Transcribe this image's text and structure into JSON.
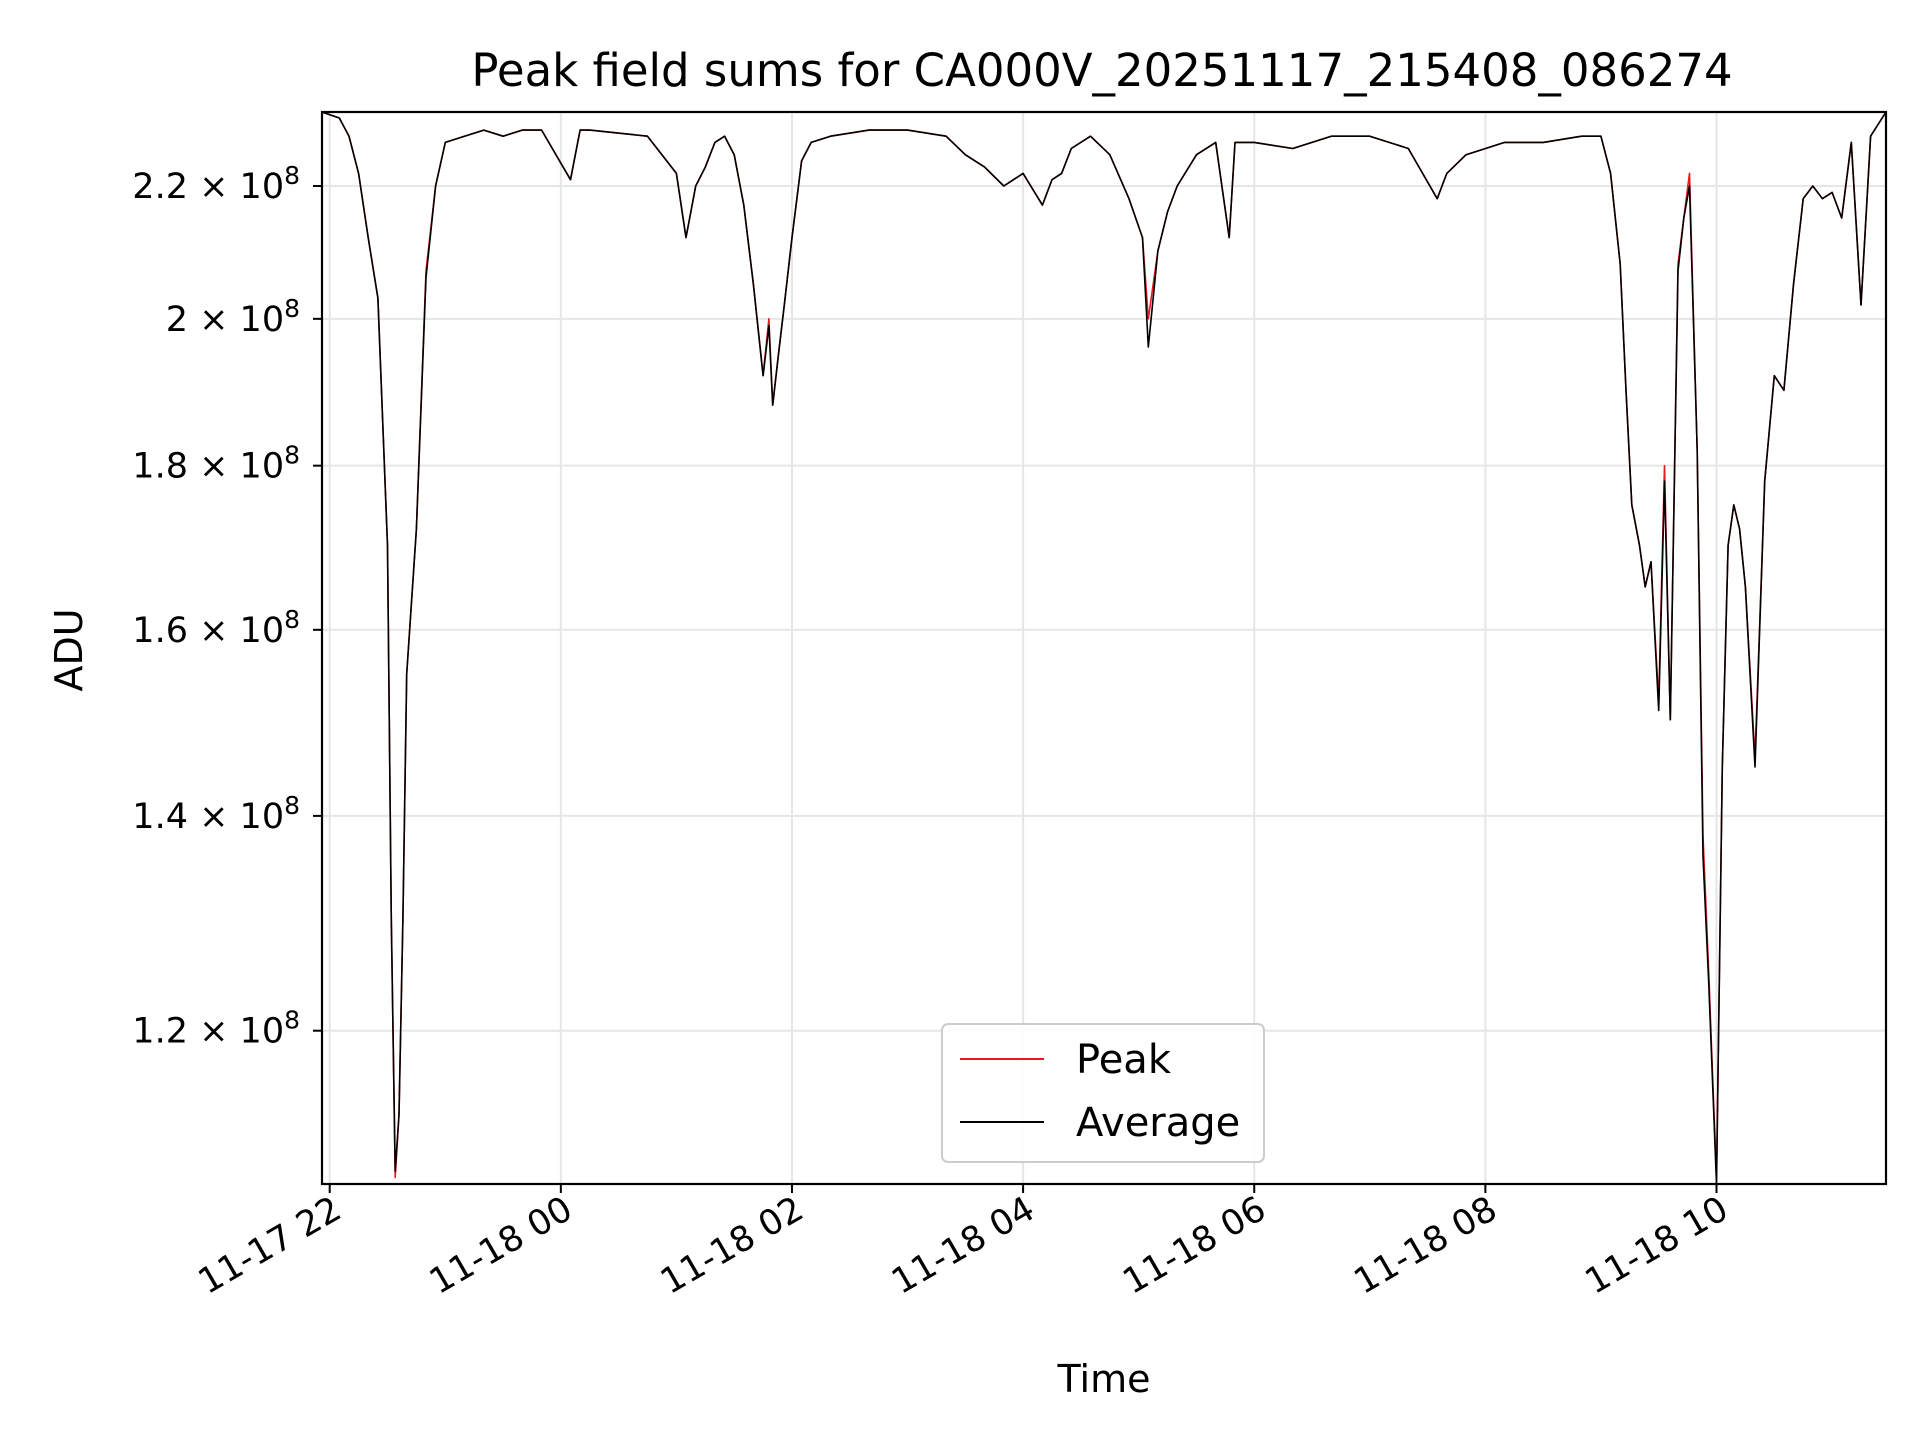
{
  "chart_data": {
    "type": "line",
    "title": "Peak field sums for CA000V_20251117_215408_086274",
    "xlabel": "Time",
    "ylabel": "ADU",
    "yscale": "log",
    "ylim": [
      107500000.0,
      232000000.0
    ],
    "xlim": [
      "2025-11-17 21:56",
      "2025-11-18 11:28"
    ],
    "grid": true,
    "legend_position": "lower-center",
    "x_ticks": [
      {
        "value": "2025-11-17 22:00",
        "label": "11-17 22"
      },
      {
        "value": "2025-11-18 00:00",
        "label": "11-18 00"
      },
      {
        "value": "2025-11-18 02:00",
        "label": "11-18 02"
      },
      {
        "value": "2025-11-18 04:00",
        "label": "11-18 04"
      },
      {
        "value": "2025-11-18 06:00",
        "label": "11-18 06"
      },
      {
        "value": "2025-11-18 08:00",
        "label": "11-18 08"
      },
      {
        "value": "2025-11-18 10:00",
        "label": "11-18 10"
      }
    ],
    "y_ticks": [
      {
        "value": 220000000.0,
        "mantissa": "2.2",
        "exponent": "8"
      },
      {
        "value": 200000000.0,
        "mantissa": "2",
        "exponent": "8"
      },
      {
        "value": 180000000.0,
        "mantissa": "1.8",
        "exponent": "8"
      },
      {
        "value": 160000000.0,
        "mantissa": "1.6",
        "exponent": "8"
      },
      {
        "value": 140000000.0,
        "mantissa": "1.4",
        "exponent": "8"
      },
      {
        "value": 120000000.0,
        "mantissa": "1.2",
        "exponent": "8"
      }
    ],
    "series": [
      {
        "name": "Peak",
        "color": "#e41a1c",
        "x": [
          "2025-11-17 21:56",
          "2025-11-17 22:05",
          "2025-11-17 22:10",
          "2025-11-17 22:15",
          "2025-11-17 22:20",
          "2025-11-17 22:25",
          "2025-11-17 22:30",
          "2025-11-17 22:32",
          "2025-11-17 22:34",
          "2025-11-17 22:36",
          "2025-11-17 22:38",
          "2025-11-17 22:40",
          "2025-11-17 22:45",
          "2025-11-17 22:50",
          "2025-11-17 22:55",
          "2025-11-17 23:00",
          "2025-11-17 23:10",
          "2025-11-17 23:20",
          "2025-11-17 23:30",
          "2025-11-17 23:40",
          "2025-11-17 23:50",
          "2025-11-18 00:05",
          "2025-11-18 00:10",
          "2025-11-18 00:15",
          "2025-11-18 00:45",
          "2025-11-18 01:00",
          "2025-11-18 01:05",
          "2025-11-18 01:10",
          "2025-11-18 01:15",
          "2025-11-18 01:20",
          "2025-11-18 01:25",
          "2025-11-18 01:30",
          "2025-11-18 01:35",
          "2025-11-18 01:40",
          "2025-11-18 01:45",
          "2025-11-18 01:48",
          "2025-11-18 01:50",
          "2025-11-18 01:53",
          "2025-11-18 01:56",
          "2025-11-18 02:00",
          "2025-11-18 02:05",
          "2025-11-18 02:10",
          "2025-11-18 02:20",
          "2025-11-18 02:40",
          "2025-11-18 03:00",
          "2025-11-18 03:20",
          "2025-11-18 03:30",
          "2025-11-18 03:40",
          "2025-11-18 03:50",
          "2025-11-18 04:00",
          "2025-11-18 04:10",
          "2025-11-18 04:15",
          "2025-11-18 04:20",
          "2025-11-18 04:25",
          "2025-11-18 04:35",
          "2025-11-18 04:45",
          "2025-11-18 04:55",
          "2025-11-18 05:02",
          "2025-11-18 05:05",
          "2025-11-18 05:10",
          "2025-11-18 05:15",
          "2025-11-18 05:20",
          "2025-11-18 05:30",
          "2025-11-18 05:40",
          "2025-11-18 05:47",
          "2025-11-18 05:50",
          "2025-11-18 06:00",
          "2025-11-18 06:20",
          "2025-11-18 06:40",
          "2025-11-18 07:00",
          "2025-11-18 07:20",
          "2025-11-18 07:35",
          "2025-11-18 07:40",
          "2025-11-18 07:50",
          "2025-11-18 08:10",
          "2025-11-18 08:30",
          "2025-11-18 08:50",
          "2025-11-18 09:00",
          "2025-11-18 09:05",
          "2025-11-18 09:10",
          "2025-11-18 09:13",
          "2025-11-18 09:16",
          "2025-11-18 09:20",
          "2025-11-18 09:23",
          "2025-11-18 09:26",
          "2025-11-18 09:30",
          "2025-11-18 09:33",
          "2025-11-18 09:36",
          "2025-11-18 09:40",
          "2025-11-18 09:43",
          "2025-11-18 09:46",
          "2025-11-18 09:50",
          "2025-11-18 09:53",
          "2025-11-18 09:56",
          "2025-11-18 10:00",
          "2025-11-18 10:03",
          "2025-11-18 10:06",
          "2025-11-18 10:09",
          "2025-11-18 10:12",
          "2025-11-18 10:15",
          "2025-11-18 10:20",
          "2025-11-18 10:25",
          "2025-11-18 10:30",
          "2025-11-18 10:35",
          "2025-11-18 10:40",
          "2025-11-18 10:45",
          "2025-11-18 10:50",
          "2025-11-18 10:55",
          "2025-11-18 11:00",
          "2025-11-18 11:05",
          "2025-11-18 11:10",
          "2025-11-18 11:15",
          "2025-11-18 11:20",
          "2025-11-18 11:28"
        ],
        "values": [
          232000000.0,
          231000000.0,
          228000000.0,
          222000000.0,
          212000000.0,
          203000000.0,
          170000000.0,
          130000000.0,
          108000000.0,
          113000000.0,
          130000000.0,
          155000000.0,
          172000000.0,
          207000000.0,
          220000000.0,
          227000000.0,
          228000000.0,
          229000000.0,
          228000000.0,
          229000000.0,
          229000000.0,
          221000000.0,
          229000000.0,
          229000000.0,
          228000000.0,
          222000000.0,
          212000000.0,
          220000000.0,
          223000000.0,
          227000000.0,
          228000000.0,
          225000000.0,
          217000000.0,
          205000000.0,
          192000000.0,
          200000000.0,
          188000000.0,
          195000000.0,
          202000000.0,
          212000000.0,
          224000000.0,
          227000000.0,
          228000000.0,
          229000000.0,
          229000000.0,
          228000000.0,
          225000000.0,
          223000000.0,
          220000000.0,
          222000000.0,
          217000000.0,
          221000000.0,
          222000000.0,
          226000000.0,
          228000000.0,
          225000000.0,
          218000000.0,
          212000000.0,
          200000000.0,
          210000000.0,
          216000000.0,
          220000000.0,
          225000000.0,
          227000000.0,
          212000000.0,
          227000000.0,
          227000000.0,
          226000000.0,
          228000000.0,
          228000000.0,
          226000000.0,
          218000000.0,
          222000000.0,
          225000000.0,
          227000000.0,
          227000000.0,
          228000000.0,
          228000000.0,
          222000000.0,
          208000000.0,
          190000000.0,
          175000000.0,
          170000000.0,
          165000000.0,
          168000000.0,
          152000000.0,
          180000000.0,
          150000000.0,
          208000000.0,
          215000000.0,
          222000000.0,
          182000000.0,
          138000000.0,
          125000000.0,
          107800000.0,
          145000000.0,
          170000000.0,
          175000000.0,
          172000000.0,
          165000000.0,
          146000000.0,
          178000000.0,
          192000000.0,
          190000000.0,
          205000000.0,
          218000000.0,
          220000000.0,
          218000000.0,
          219000000.0,
          215000000.0,
          227000000.0,
          202000000.0,
          228000000.0,
          232000000.0
        ]
      },
      {
        "name": "Average",
        "color": "#000000",
        "x": [
          "2025-11-17 21:56",
          "2025-11-17 22:05",
          "2025-11-17 22:10",
          "2025-11-17 22:15",
          "2025-11-17 22:20",
          "2025-11-17 22:25",
          "2025-11-17 22:30",
          "2025-11-17 22:32",
          "2025-11-17 22:34",
          "2025-11-17 22:36",
          "2025-11-17 22:38",
          "2025-11-17 22:40",
          "2025-11-17 22:45",
          "2025-11-17 22:50",
          "2025-11-17 22:55",
          "2025-11-17 23:00",
          "2025-11-17 23:10",
          "2025-11-17 23:20",
          "2025-11-17 23:30",
          "2025-11-17 23:40",
          "2025-11-17 23:50",
          "2025-11-18 00:05",
          "2025-11-18 00:10",
          "2025-11-18 00:15",
          "2025-11-18 00:45",
          "2025-11-18 01:00",
          "2025-11-18 01:05",
          "2025-11-18 01:10",
          "2025-11-18 01:15",
          "2025-11-18 01:20",
          "2025-11-18 01:25",
          "2025-11-18 01:30",
          "2025-11-18 01:35",
          "2025-11-18 01:40",
          "2025-11-18 01:45",
          "2025-11-18 01:48",
          "2025-11-18 01:50",
          "2025-11-18 01:53",
          "2025-11-18 01:56",
          "2025-11-18 02:00",
          "2025-11-18 02:05",
          "2025-11-18 02:10",
          "2025-11-18 02:20",
          "2025-11-18 02:40",
          "2025-11-18 03:00",
          "2025-11-18 03:20",
          "2025-11-18 03:30",
          "2025-11-18 03:40",
          "2025-11-18 03:50",
          "2025-11-18 04:00",
          "2025-11-18 04:10",
          "2025-11-18 04:15",
          "2025-11-18 04:20",
          "2025-11-18 04:25",
          "2025-11-18 04:35",
          "2025-11-18 04:45",
          "2025-11-18 04:55",
          "2025-11-18 05:02",
          "2025-11-18 05:05",
          "2025-11-18 05:10",
          "2025-11-18 05:15",
          "2025-11-18 05:20",
          "2025-11-18 05:30",
          "2025-11-18 05:40",
          "2025-11-18 05:47",
          "2025-11-18 05:50",
          "2025-11-18 06:00",
          "2025-11-18 06:20",
          "2025-11-18 06:40",
          "2025-11-18 07:00",
          "2025-11-18 07:20",
          "2025-11-18 07:35",
          "2025-11-18 07:40",
          "2025-11-18 07:50",
          "2025-11-18 08:10",
          "2025-11-18 08:30",
          "2025-11-18 08:50",
          "2025-11-18 09:00",
          "2025-11-18 09:05",
          "2025-11-18 09:10",
          "2025-11-18 09:13",
          "2025-11-18 09:16",
          "2025-11-18 09:20",
          "2025-11-18 09:23",
          "2025-11-18 09:26",
          "2025-11-18 09:30",
          "2025-11-18 09:33",
          "2025-11-18 09:36",
          "2025-11-18 09:40",
          "2025-11-18 09:43",
          "2025-11-18 09:46",
          "2025-11-18 09:50",
          "2025-11-18 09:53",
          "2025-11-18 09:56",
          "2025-11-18 10:00",
          "2025-11-18 10:03",
          "2025-11-18 10:06",
          "2025-11-18 10:09",
          "2025-11-18 10:12",
          "2025-11-18 10:15",
          "2025-11-18 10:20",
          "2025-11-18 10:25",
          "2025-11-18 10:30",
          "2025-11-18 10:35",
          "2025-11-18 10:40",
          "2025-11-18 10:45",
          "2025-11-18 10:50",
          "2025-11-18 10:55",
          "2025-11-18 11:00",
          "2025-11-18 11:05",
          "2025-11-18 11:10",
          "2025-11-18 11:15",
          "2025-11-18 11:20",
          "2025-11-18 11:28"
        ],
        "values": [
          232000000.0,
          231000000.0,
          228000000.0,
          222000000.0,
          212000000.0,
          203000000.0,
          170000000.0,
          130000000.0,
          108500000.0,
          113000000.0,
          130000000.0,
          155000000.0,
          172000000.0,
          206000000.0,
          220000000.0,
          227000000.0,
          228000000.0,
          229000000.0,
          228000000.0,
          229000000.0,
          229000000.0,
          221000000.0,
          229000000.0,
          229000000.0,
          228000000.0,
          222000000.0,
          212000000.0,
          220000000.0,
          223000000.0,
          227000000.0,
          228000000.0,
          225000000.0,
          217000000.0,
          205000000.0,
          192000000.0,
          199000000.0,
          188000000.0,
          195000000.0,
          202000000.0,
          212000000.0,
          224000000.0,
          227000000.0,
          228000000.0,
          229000000.0,
          229000000.0,
          228000000.0,
          225000000.0,
          223000000.0,
          220000000.0,
          222000000.0,
          217000000.0,
          221000000.0,
          222000000.0,
          226000000.0,
          228000000.0,
          225000000.0,
          218000000.0,
          212000000.0,
          196000000.0,
          210000000.0,
          216000000.0,
          220000000.0,
          225000000.0,
          227000000.0,
          212000000.0,
          227000000.0,
          227000000.0,
          226000000.0,
          228000000.0,
          228000000.0,
          226000000.0,
          218000000.0,
          222000000.0,
          225000000.0,
          227000000.0,
          227000000.0,
          228000000.0,
          228000000.0,
          222000000.0,
          208000000.0,
          190000000.0,
          175000000.0,
          170000000.0,
          165000000.0,
          168000000.0,
          151000000.0,
          178000000.0,
          150000000.0,
          207000000.0,
          215000000.0,
          220000000.0,
          182000000.0,
          136000000.0,
          124000000.0,
          107500000.0,
          145000000.0,
          170000000.0,
          175000000.0,
          172000000.0,
          165000000.0,
          145000000.0,
          178000000.0,
          192000000.0,
          190000000.0,
          205000000.0,
          218000000.0,
          220000000.0,
          218000000.0,
          219000000.0,
          215000000.0,
          227000000.0,
          202000000.0,
          228000000.0,
          232000000.0
        ]
      }
    ]
  }
}
